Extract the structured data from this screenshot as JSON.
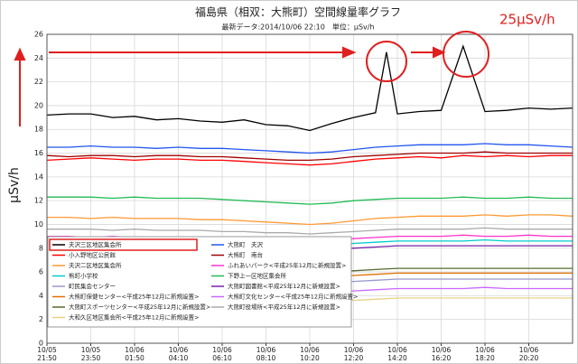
{
  "chart_data": {
    "type": "line",
    "title": "福島県（相双：大熊町）空間線量率グラフ",
    "subtitle": "最新データ:2014/10/06 22:10　単位：μSv/h",
    "y_label": "μSv/h",
    "annotation": "25μSv/h",
    "ylim": [
      0,
      26
    ],
    "yticks": [
      0,
      2,
      4,
      6,
      8,
      10,
      12,
      14,
      16,
      18,
      20,
      22,
      24,
      26
    ],
    "xlim": [
      0,
      12
    ],
    "xticks": [
      {
        "value": 0,
        "date": "10/05",
        "time": "21:50"
      },
      {
        "value": 1,
        "date": "10/05",
        "time": "23:50"
      },
      {
        "value": 2,
        "date": "10/06",
        "time": "01:50"
      },
      {
        "value": 3,
        "date": "10/06",
        "time": "04:10"
      },
      {
        "value": 4,
        "date": "10/06",
        "time": "06:10"
      },
      {
        "value": 5,
        "date": "10/06",
        "time": "08:10"
      },
      {
        "value": 6,
        "date": "10/06",
        "time": "10:20"
      },
      {
        "value": 7,
        "date": "10/06",
        "time": "12:20"
      },
      {
        "value": 8,
        "date": "10/06",
        "time": "14:20"
      },
      {
        "value": 9,
        "date": "10/06",
        "time": "16:20"
      },
      {
        "value": 10,
        "date": "10/06",
        "time": "18:20"
      },
      {
        "value": 11,
        "date": "10/06",
        "time": "20:20"
      }
    ],
    "grid": true,
    "legend": "lower-left",
    "x": [
      0,
      0.5,
      1,
      1.5,
      2,
      2.5,
      3,
      3.5,
      4,
      4.5,
      5,
      5.5,
      6,
      6.5,
      7,
      7.5,
      8,
      8.5,
      9,
      9.5,
      10,
      10.5,
      11,
      11.5,
      12
    ],
    "series": [
      {
        "name": "夫沢三区地区集会所",
        "color": "#000000",
        "highlight": true,
        "x": [
          0,
          0.5,
          1,
          1.5,
          2,
          2.5,
          3,
          3.5,
          4,
          4.5,
          5,
          5.5,
          6,
          6.5,
          7,
          7.5,
          7.75,
          8,
          8.5,
          9,
          9.5,
          10,
          10.5,
          11,
          11.5,
          12
        ],
        "values": [
          19.2,
          19.3,
          19.3,
          19.0,
          19.1,
          18.8,
          18.9,
          18.7,
          18.6,
          18.8,
          18.4,
          18.3,
          17.9,
          18.5,
          19.0,
          19.4,
          24.5,
          19.3,
          19.5,
          19.6,
          25.0,
          19.5,
          19.6,
          19.8,
          19.7,
          19.8
        ]
      },
      {
        "name": "小入野地区公民館",
        "color": "#ff0000",
        "values": [
          15.4,
          15.5,
          15.6,
          15.5,
          15.4,
          15.5,
          15.5,
          15.4,
          15.4,
          15.3,
          15.2,
          15.1,
          15.0,
          15.1,
          15.3,
          15.5,
          15.6,
          15.7,
          15.6,
          15.8,
          15.7,
          15.8,
          15.7,
          15.8,
          15.8
        ]
      },
      {
        "name": "夫沢二区地区集会所",
        "color": "#ff9933",
        "values": [
          10.6,
          10.6,
          10.5,
          10.6,
          10.5,
          10.5,
          10.5,
          10.4,
          10.4,
          10.3,
          10.2,
          10.1,
          10.0,
          10.1,
          10.3,
          10.5,
          10.6,
          10.7,
          10.7,
          10.7,
          10.8,
          10.7,
          10.8,
          10.8,
          10.7
        ]
      },
      {
        "name": "熊町小学校",
        "color": "#00cccc",
        "values": [
          8.6,
          8.6,
          8.6,
          8.5,
          8.6,
          8.5,
          8.5,
          8.5,
          8.4,
          8.4,
          8.3,
          8.3,
          8.2,
          8.3,
          8.4,
          8.5,
          8.6,
          8.6,
          8.6,
          8.6,
          8.7,
          8.6,
          8.6,
          8.6,
          8.6
        ]
      },
      {
        "name": "町民集会センター",
        "color": "#9999cc",
        "values": [
          5.4,
          5.4,
          5.4,
          5.3,
          5.4,
          5.3,
          5.3,
          5.3,
          5.3,
          5.2,
          5.2,
          5.1,
          5.1,
          5.2,
          5.2,
          5.3,
          5.4,
          5.4,
          5.4,
          5.4,
          5.4,
          5.4,
          5.4,
          5.4,
          5.4
        ]
      },
      {
        "name": "大熊町保健センター<平成25年12月に新規設置>",
        "color": "#e07000",
        "values": [
          5.9,
          5.9,
          5.9,
          5.8,
          5.9,
          5.8,
          5.8,
          5.8,
          5.8,
          5.7,
          5.7,
          5.6,
          5.6,
          5.7,
          5.7,
          5.8,
          5.9,
          5.9,
          5.9,
          5.9,
          5.9,
          5.9,
          5.9,
          5.9,
          5.9
        ]
      },
      {
        "name": "大熊町スポーツセンター<平成25年12月に新規設置>",
        "color": "#556b2f",
        "values": [
          6.3,
          6.3,
          6.3,
          6.2,
          6.3,
          6.2,
          6.2,
          6.2,
          6.2,
          6.1,
          6.1,
          6.0,
          6.0,
          6.1,
          6.1,
          6.2,
          6.3,
          6.3,
          6.3,
          6.3,
          6.3,
          6.3,
          6.3,
          6.3,
          6.3
        ]
      },
      {
        "name": "大和久区地区集会所<平成25年12月に新規設置>",
        "color": "#e6d280",
        "values": [
          3.8,
          3.8,
          3.8,
          3.7,
          3.8,
          3.7,
          3.7,
          3.7,
          3.7,
          3.6,
          3.6,
          3.5,
          3.5,
          3.6,
          3.6,
          3.7,
          3.8,
          3.8,
          3.8,
          3.8,
          3.8,
          3.8,
          3.8,
          3.8,
          3.8
        ]
      },
      {
        "name": "大熊町　夫沢",
        "color": "#2255ee",
        "values": [
          16.5,
          16.5,
          16.6,
          16.5,
          16.5,
          16.4,
          16.5,
          16.4,
          16.4,
          16.3,
          16.2,
          16.1,
          16.0,
          16.1,
          16.3,
          16.5,
          16.6,
          16.7,
          16.7,
          16.7,
          16.8,
          16.7,
          16.7,
          16.6,
          16.5
        ]
      },
      {
        "name": "大熊町　南台",
        "color": "#a00000",
        "values": [
          15.8,
          15.7,
          15.8,
          15.8,
          15.7,
          15.8,
          15.8,
          15.7,
          15.7,
          15.6,
          15.5,
          15.4,
          15.4,
          15.5,
          15.7,
          15.8,
          15.9,
          16.0,
          16.0,
          16.0,
          16.1,
          16.0,
          16.0,
          16.0,
          16.0
        ]
      },
      {
        "name": "ふれあいパーク<平成25年12月に新規設置>",
        "color": "#ff33cc",
        "values": [
          9.0,
          9.0,
          8.9,
          9.0,
          8.9,
          8.9,
          8.9,
          8.8,
          8.8,
          8.8,
          8.7,
          8.6,
          8.6,
          8.7,
          8.8,
          8.9,
          9.0,
          9.0,
          9.0,
          9.1,
          9.0,
          9.0,
          9.1,
          9.0,
          9.0
        ]
      },
      {
        "name": "下野上一区地区集会所",
        "color": "#22bb55",
        "values": [
          12.3,
          12.3,
          12.3,
          12.2,
          12.3,
          12.2,
          12.2,
          12.2,
          12.1,
          12.0,
          11.9,
          11.8,
          11.7,
          11.8,
          12.0,
          12.1,
          12.2,
          12.2,
          12.2,
          12.3,
          12.2,
          12.2,
          12.3,
          12.2,
          12.2
        ]
      },
      {
        "name": "大熊町図書館<平成25年12月に新規設置>",
        "color": "#7722aa",
        "values": [
          8.2,
          8.2,
          8.2,
          8.1,
          8.2,
          8.1,
          8.1,
          8.1,
          8.0,
          8.0,
          8.0,
          7.9,
          7.9,
          7.9,
          8.0,
          8.1,
          8.2,
          8.2,
          8.2,
          8.2,
          8.2,
          8.2,
          8.2,
          8.2,
          8.2
        ]
      },
      {
        "name": "大熊町文化センター<平成25年12月に新規設置>",
        "color": "#cc66ff",
        "values": [
          4.6,
          4.6,
          4.6,
          4.5,
          4.6,
          4.5,
          4.5,
          4.5,
          4.5,
          4.4,
          4.4,
          4.3,
          4.3,
          4.4,
          4.4,
          4.5,
          4.6,
          4.6,
          4.6,
          4.6,
          4.7,
          4.6,
          4.6,
          4.6,
          4.6
        ]
      },
      {
        "name": "大熊町役場所<平成25年12月に新規設置>",
        "color": "#aaaaaa",
        "values": [
          9.6,
          9.6,
          9.6,
          9.5,
          9.6,
          9.5,
          9.5,
          9.5,
          9.4,
          9.4,
          9.3,
          9.3,
          9.2,
          9.3,
          9.4,
          9.5,
          9.6,
          9.6,
          9.6,
          9.6,
          9.7,
          9.6,
          9.6,
          9.6,
          9.6
        ]
      }
    ]
  }
}
